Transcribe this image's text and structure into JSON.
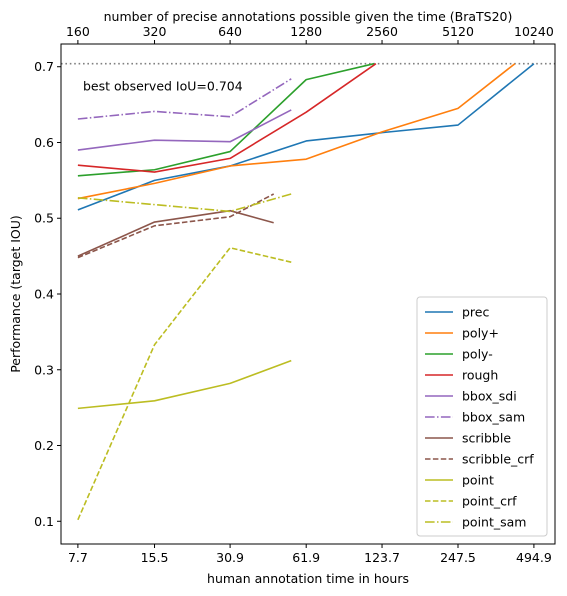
{
  "chart_data": {
    "type": "line",
    "xlabel": "human annotation time in hours",
    "ylabel": "Performance (target IOU)",
    "top_axis_label": "number of precise annotations possible given the time (BraTS20)",
    "x_scale": "log2",
    "x_ticks": [
      7.7,
      15.5,
      30.9,
      61.9,
      123.7,
      247.5,
      494.9
    ],
    "x_tick_labels": [
      "7.7",
      "15.5",
      "30.9",
      "61.9",
      "123.7",
      "247.5",
      "494.9"
    ],
    "top_ticks": [
      160,
      320,
      640,
      1280,
      2560,
      5120,
      10240
    ],
    "top_tick_labels": [
      "160",
      "320",
      "640",
      "1280",
      "2560",
      "5120",
      "10240"
    ],
    "xlim": [
      6.6,
      600
    ],
    "ylim": [
      0.07,
      0.73
    ],
    "y_ticks": [
      0.1,
      0.2,
      0.3,
      0.4,
      0.5,
      0.6,
      0.7
    ],
    "y_tick_labels": [
      "0.1",
      "0.2",
      "0.3",
      "0.4",
      "0.5",
      "0.6",
      "0.7"
    ],
    "reference_line": {
      "y": 0.704,
      "label": "best observed IoU=0.704",
      "color": "#808080"
    },
    "legend_position": "lower-right",
    "series": [
      {
        "name": "prec",
        "color": "#1f77b4",
        "dash": "solid",
        "x": [
          7.7,
          15.5,
          30.9,
          61.9,
          123.7,
          247.5,
          494.9
        ],
        "y": [
          0.511,
          0.55,
          0.569,
          0.602,
          0.613,
          0.623,
          0.704
        ]
      },
      {
        "name": "poly+",
        "color": "#ff7f0e",
        "dash": "solid",
        "x": [
          7.7,
          15.5,
          30.9,
          61.9,
          123.7,
          247.5,
          416
        ],
        "y": [
          0.526,
          0.546,
          0.569,
          0.578,
          0.614,
          0.645,
          0.704
        ]
      },
      {
        "name": "poly-",
        "color": "#2ca02c",
        "dash": "solid",
        "x": [
          7.7,
          15.5,
          30.9,
          61.9,
          115
        ],
        "y": [
          0.556,
          0.564,
          0.588,
          0.683,
          0.704
        ]
      },
      {
        "name": "rough",
        "color": "#d62728",
        "dash": "solid",
        "x": [
          7.7,
          15.5,
          30.9,
          61.9,
          117
        ],
        "y": [
          0.57,
          0.561,
          0.579,
          0.64,
          0.704
        ]
      },
      {
        "name": "bbox_sdi",
        "color": "#9467bd",
        "dash": "solid",
        "x": [
          7.7,
          15.5,
          30.9,
          54
        ],
        "y": [
          0.59,
          0.603,
          0.601,
          0.643
        ]
      },
      {
        "name": "bbox_sam",
        "color": "#9467bd",
        "dash": "dashdot",
        "x": [
          7.7,
          15.5,
          30.9,
          54
        ],
        "y": [
          0.631,
          0.641,
          0.634,
          0.684
        ]
      },
      {
        "name": "scribble",
        "color": "#8c564b",
        "dash": "solid",
        "x": [
          7.7,
          15.5,
          30.9,
          46
        ],
        "y": [
          0.45,
          0.495,
          0.51,
          0.494
        ]
      },
      {
        "name": "scribble_crf",
        "color": "#8c564b",
        "dash": "dashed",
        "x": [
          7.7,
          15.5,
          30.9,
          46
        ],
        "y": [
          0.448,
          0.49,
          0.502,
          0.532
        ]
      },
      {
        "name": "point",
        "color": "#bcbd22",
        "dash": "solid",
        "x": [
          7.7,
          15.5,
          30.9,
          54
        ],
        "y": [
          0.249,
          0.259,
          0.282,
          0.312
        ]
      },
      {
        "name": "point_crf",
        "color": "#bcbd22",
        "dash": "dashed",
        "x": [
          7.7,
          15.5,
          30.9,
          54
        ],
        "y": [
          0.102,
          0.333,
          0.461,
          0.442
        ]
      },
      {
        "name": "point_sam",
        "color": "#bcbd22",
        "dash": "dashdot",
        "x": [
          7.7,
          15.5,
          30.9,
          54
        ],
        "y": [
          0.527,
          0.518,
          0.509,
          0.532
        ]
      }
    ]
  }
}
